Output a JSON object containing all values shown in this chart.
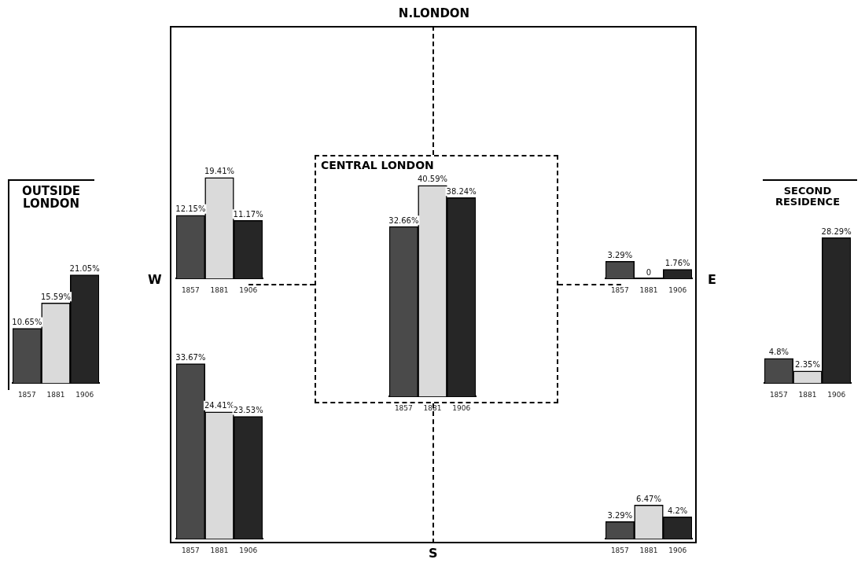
{
  "chart_data": [
    {
      "type": "bar",
      "title": "OUTSIDE LONDON",
      "categories": [
        "1857",
        "1881",
        "1906"
      ],
      "values": [
        10.65,
        15.59,
        21.05
      ],
      "colors": [
        "#4a4a4a",
        "#dadada",
        "#262626"
      ],
      "value_labels": [
        "10.65%",
        "15.59%",
        "21.05%"
      ],
      "tick_labels": "x"
    },
    {
      "type": "bar",
      "categories": [
        "1857",
        "1881",
        "1906"
      ],
      "values": [
        12.15,
        19.41,
        11.17
      ],
      "colors": [
        "#4a4a4a",
        "#dadada",
        "#262626"
      ],
      "value_labels": [
        "12.15%",
        "19.41%",
        "11.17%"
      ],
      "tick_labels": "x",
      "annotations": [
        "W"
      ]
    },
    {
      "type": "bar",
      "title": "CENTRAL LONDON",
      "categories": [
        "1857",
        "1881",
        "1906"
      ],
      "values": [
        32.66,
        40.59,
        38.24
      ],
      "colors": [
        "#4a4a4a",
        "#dadada",
        "#262626"
      ],
      "value_labels": [
        "32.66%",
        "40.59%",
        "38.24%"
      ],
      "tick_labels": "x"
    },
    {
      "type": "bar",
      "categories": [
        "1857",
        "1881",
        "1906"
      ],
      "values": [
        3.29,
        0,
        1.76
      ],
      "colors": [
        "#4a4a4a",
        "#dadada",
        "#262626"
      ],
      "value_labels": [
        "3.29%",
        "0",
        "1.76%"
      ],
      "tick_labels": "x",
      "annotations": [
        "E"
      ]
    },
    {
      "type": "bar",
      "categories": [
        "1857",
        "1881",
        "1906"
      ],
      "values": [
        33.67,
        24.41,
        23.53
      ],
      "colors": [
        "#4a4a4a",
        "#dadada",
        "#262626"
      ],
      "value_labels": [
        "33.67%",
        "24.41%",
        "23.53%"
      ],
      "tick_labels": "x"
    },
    {
      "type": "bar",
      "categories": [
        "1857",
        "1881",
        "1906"
      ],
      "values": [
        3.29,
        6.47,
        4.2
      ],
      "colors": [
        "#4a4a4a",
        "#dadada",
        "#262626"
      ],
      "value_labels": [
        "3.29%",
        "6.47%",
        "4.2%"
      ],
      "tick_labels": "x"
    },
    {
      "type": "bar",
      "title": "SECOND RESIDENCE",
      "categories": [
        "1857",
        "1881",
        "1906"
      ],
      "values": [
        4.8,
        2.35,
        28.29
      ],
      "colors": [
        "#4a4a4a",
        "#dadada",
        "#262626"
      ],
      "value_labels": [
        "4.8%",
        "2.35%",
        "28.29%"
      ],
      "tick_labels": "x"
    },
    {
      "type": "other",
      "title": "N.LONDON",
      "annotations": [
        "S"
      ]
    }
  ]
}
